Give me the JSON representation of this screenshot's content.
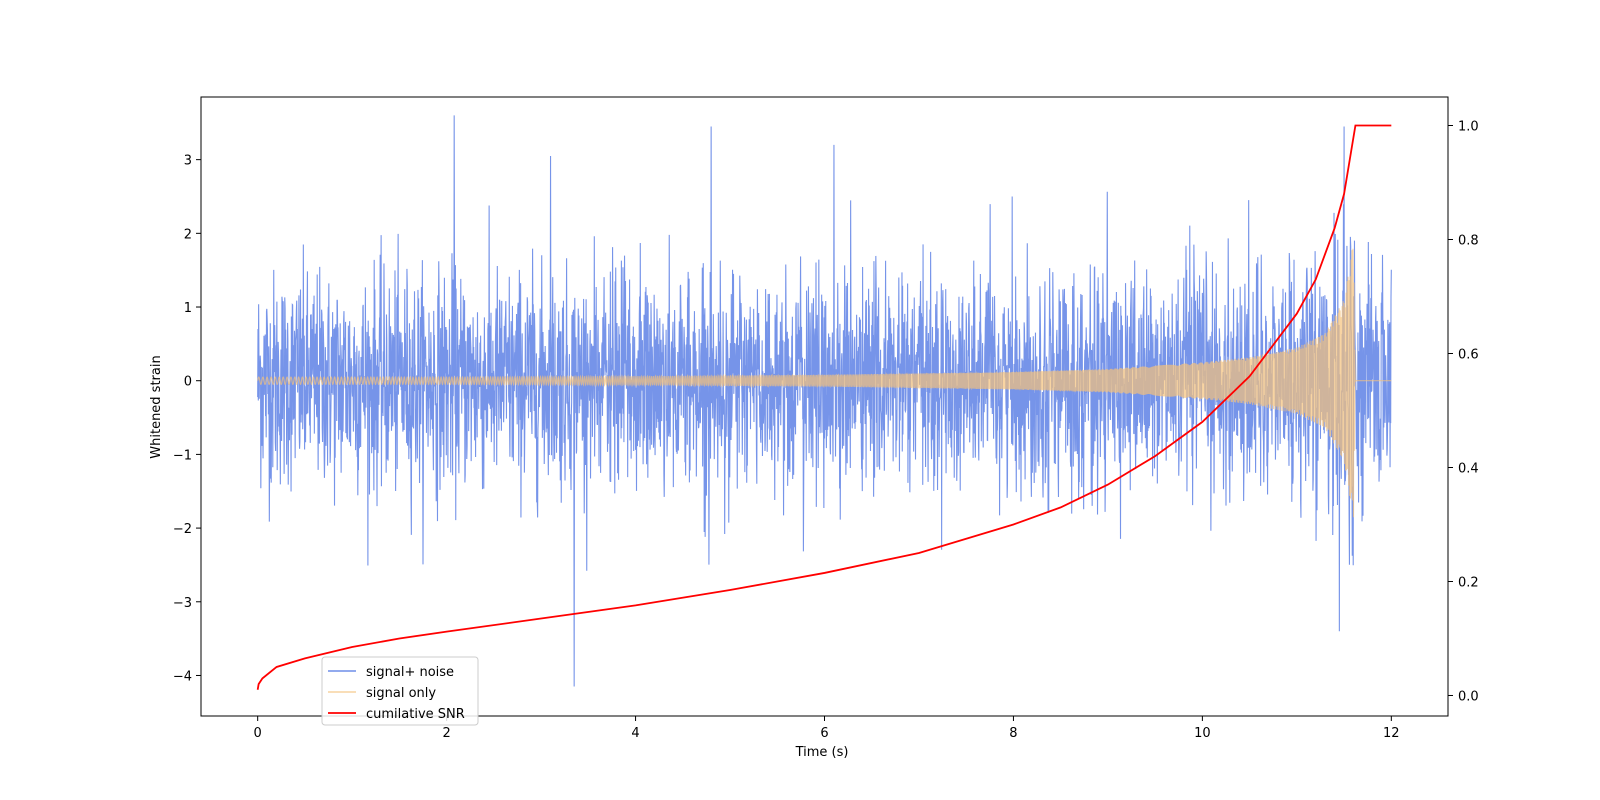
{
  "chart_data": {
    "type": "line",
    "xlabel": "Time (s)",
    "ylabel": "Whitened strain",
    "ylabel_right": "",
    "xlim": [
      -0.6,
      12.6
    ],
    "ylim": [
      -4.55,
      3.85
    ],
    "ylim_right": [
      -0.036,
      1.05
    ],
    "x_ticks": [
      "0",
      "2",
      "4",
      "6",
      "8",
      "10",
      "12"
    ],
    "y_ticks": [
      "−4",
      "−3",
      "−2",
      "−1",
      "0",
      "1",
      "2",
      "3"
    ],
    "y_ticks_right": [
      "0.0",
      "0.2",
      "0.4",
      "0.6",
      "0.8",
      "1.0"
    ],
    "legend_position": "lower-left",
    "series": [
      {
        "name": "signal+ noise",
        "color": "#6f8ee8",
        "axis": "left",
        "description_values": {
          "x_range": [
            0,
            12
          ],
          "typical_range": [
            -2.0,
            2.0
          ],
          "max": 3.6,
          "min": -4.15,
          "notable_spikes": [
            {
              "x": 2.08,
              "y": 3.6
            },
            {
              "x": 4.8,
              "y": 3.45
            },
            {
              "x": 3.35,
              "y": -4.15
            },
            {
              "x": 11.45,
              "y": -3.4
            },
            {
              "x": 11.5,
              "y": 3.45
            },
            {
              "x": 6.1,
              "y": 3.2
            },
            {
              "x": 3.1,
              "y": 3.05
            }
          ]
        }
      },
      {
        "name": "signal only",
        "color": "#f5c27a",
        "axis": "left",
        "envelope": [
          {
            "x": 0.0,
            "amp": 0.05
          },
          {
            "x": 2.0,
            "amp": 0.05
          },
          {
            "x": 4.0,
            "amp": 0.06
          },
          {
            "x": 6.0,
            "amp": 0.08
          },
          {
            "x": 8.0,
            "amp": 0.12
          },
          {
            "x": 9.0,
            "amp": 0.16
          },
          {
            "x": 10.0,
            "amp": 0.25
          },
          {
            "x": 10.5,
            "amp": 0.32
          },
          {
            "x": 11.0,
            "amp": 0.45
          },
          {
            "x": 11.3,
            "amp": 0.65
          },
          {
            "x": 11.5,
            "amp": 1.1
          },
          {
            "x": 11.6,
            "amp": 1.9
          },
          {
            "x": 11.62,
            "amp": 0.0
          },
          {
            "x": 12.0,
            "amp": 0.0
          }
        ]
      },
      {
        "name": "cumilative SNR",
        "color": "#ff0000",
        "axis": "right",
        "x": [
          0,
          0.01,
          0.05,
          0.2,
          0.5,
          1,
          1.5,
          2,
          3,
          4,
          5,
          6,
          7,
          8,
          8.5,
          9,
          9.5,
          10,
          10.5,
          11,
          11.2,
          11.4,
          11.5,
          11.55,
          11.6,
          11.62,
          12
        ],
        "values": [
          0.01,
          0.02,
          0.03,
          0.05,
          0.065,
          0.085,
          0.1,
          0.112,
          0.135,
          0.158,
          0.185,
          0.215,
          0.25,
          0.3,
          0.33,
          0.37,
          0.42,
          0.48,
          0.56,
          0.67,
          0.73,
          0.82,
          0.88,
          0.93,
          0.98,
          1.0,
          1.0
        ]
      }
    ]
  }
}
